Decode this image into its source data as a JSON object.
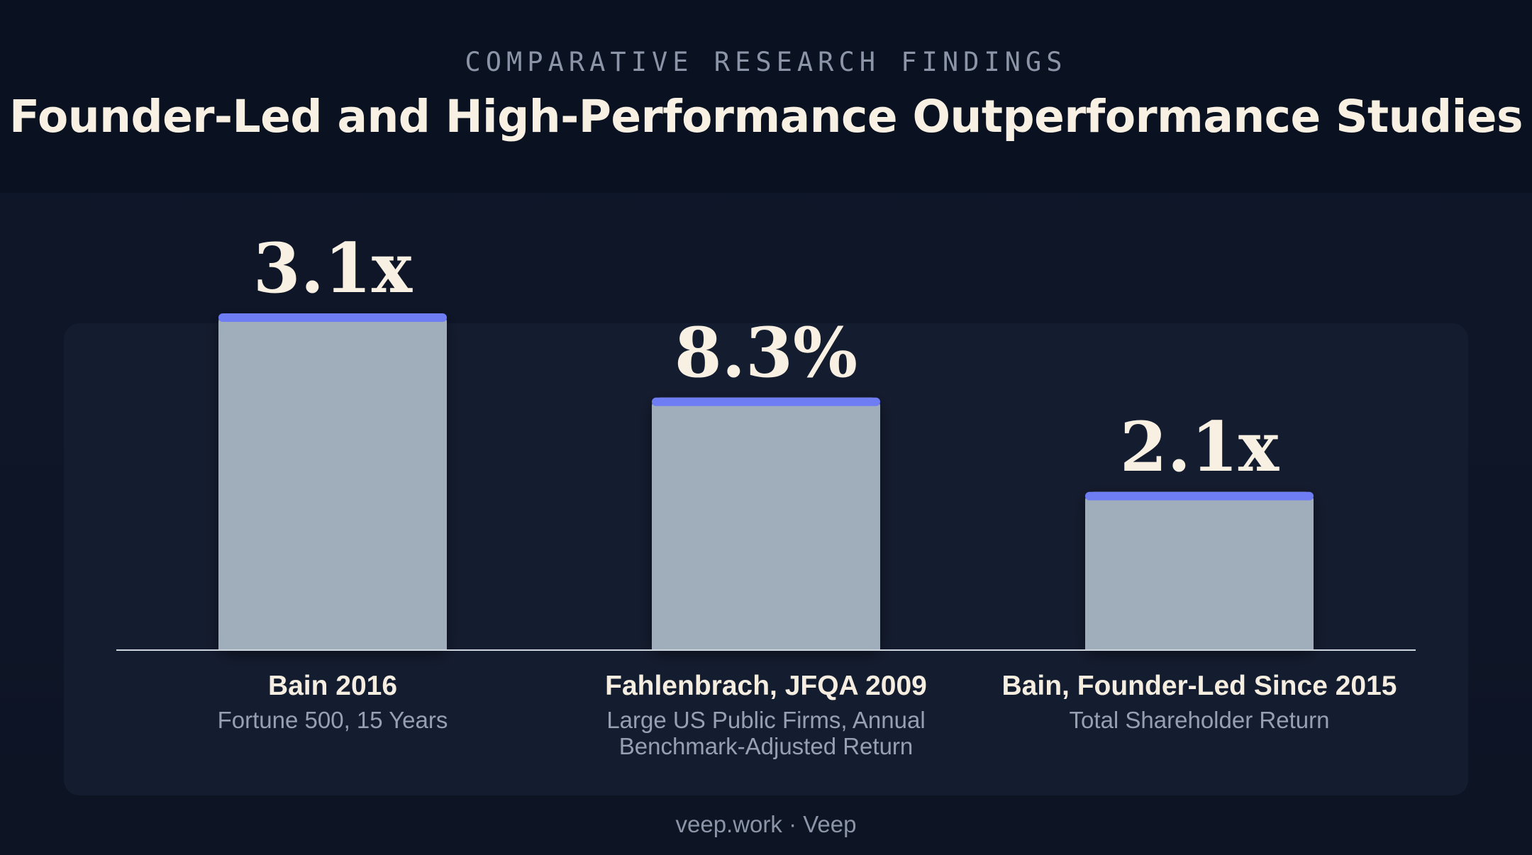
{
  "header": {
    "eyebrow": "COMPARATIVE RESEARCH FINDINGS",
    "title": "Founder-Led and High-Performance Outperformance Studies"
  },
  "colors": {
    "bar_fill": "#a0adbb",
    "bar_cap": "#6f7df5",
    "baseline": "#cfd5de"
  },
  "chart_data": {
    "type": "bar",
    "title": "Founder-Led and High-Performance Outperformance Studies",
    "subtitle": "COMPARATIVE RESEARCH FINDINGS",
    "xlabel": "",
    "ylabel": "",
    "grid": false,
    "legend": "none",
    "categories": [
      "Bain 2016",
      "Fahlenbrach, JFQA 2009",
      "Bain, Founder-Led Since 2015"
    ],
    "subtitles": [
      [
        "Fortune 500, 15 Years"
      ],
      [
        "Large US Public Firms, Annual",
        "Benchmark-Adjusted Return"
      ],
      [
        "Total Shareholder Return"
      ]
    ],
    "value_labels": [
      "3.1x",
      "8.3%",
      "2.1x"
    ],
    "relative_heights": [
      1.0,
      0.75,
      0.47
    ]
  },
  "footer": {
    "text": "veep.work · Veep"
  }
}
